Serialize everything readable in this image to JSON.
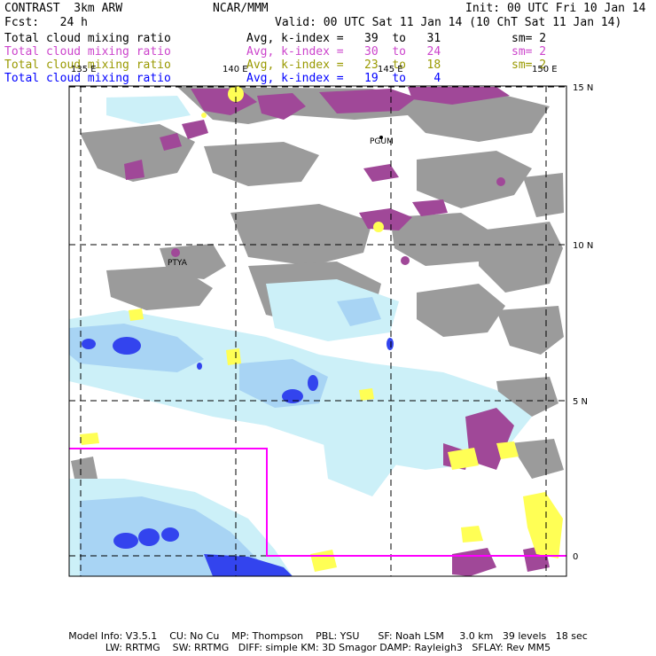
{
  "header": {
    "model": "CONTRAST  3km ARW",
    "org": "NCAR/MMM",
    "init": "Init: 00 UTC Fri 10 Jan 14",
    "fcst": "Fcst:   24 h",
    "valid": "Valid: 00 UTC Sat 11 Jan 14 (10 ChT Sat 11 Jan 14)"
  },
  "fields": [
    {
      "name": "Total cloud mixing ratio",
      "range": "Avg, k-index =   39  to   31",
      "sm": "sm= 2",
      "color": "#000000"
    },
    {
      "name": "Total cloud mixing ratio",
      "range": "Avg, k-index =   30  to   24",
      "sm": "sm= 2",
      "color": "#cc44cc"
    },
    {
      "name": "Total cloud mixing ratio",
      "range": "Avg, k-index =   23  to   18",
      "sm": "sm= 2",
      "color": "#999900"
    },
    {
      "name": "Total cloud mixing ratio",
      "range": "Avg, k-index =   19  to    4",
      "sm": "",
      "color": "#0000ff"
    }
  ],
  "map": {
    "lon_labels": [
      "135 E",
      "140 E",
      "145 E",
      "150 E"
    ],
    "lat_labels": [
      "15 N",
      "10 N",
      "5 N",
      "0"
    ],
    "places": [
      "PGUM",
      "PTYA"
    ],
    "colors": {
      "high_cloud": "#9b9b9b",
      "mid_cloud": "#a04898",
      "low_cloud": "#ffff55",
      "shallow_light": "#ccf0f8",
      "shallow_mid": "#a8d4f4",
      "shallow_dark": "#3344ee",
      "nest_box": "#ff00ff"
    }
  },
  "footer": {
    "line1": "Model Info: V3.5.1    CU: No Cu    MP: Thompson    PBL: YSU      SF: Noah LSM     3.0 km   39 levels   18 sec",
    "line2": "LW: RRTMG    SW: RRTMG   DIFF: simple KM: 3D Smagor DAMP: Rayleigh3   SFLAY: Rev MM5"
  }
}
